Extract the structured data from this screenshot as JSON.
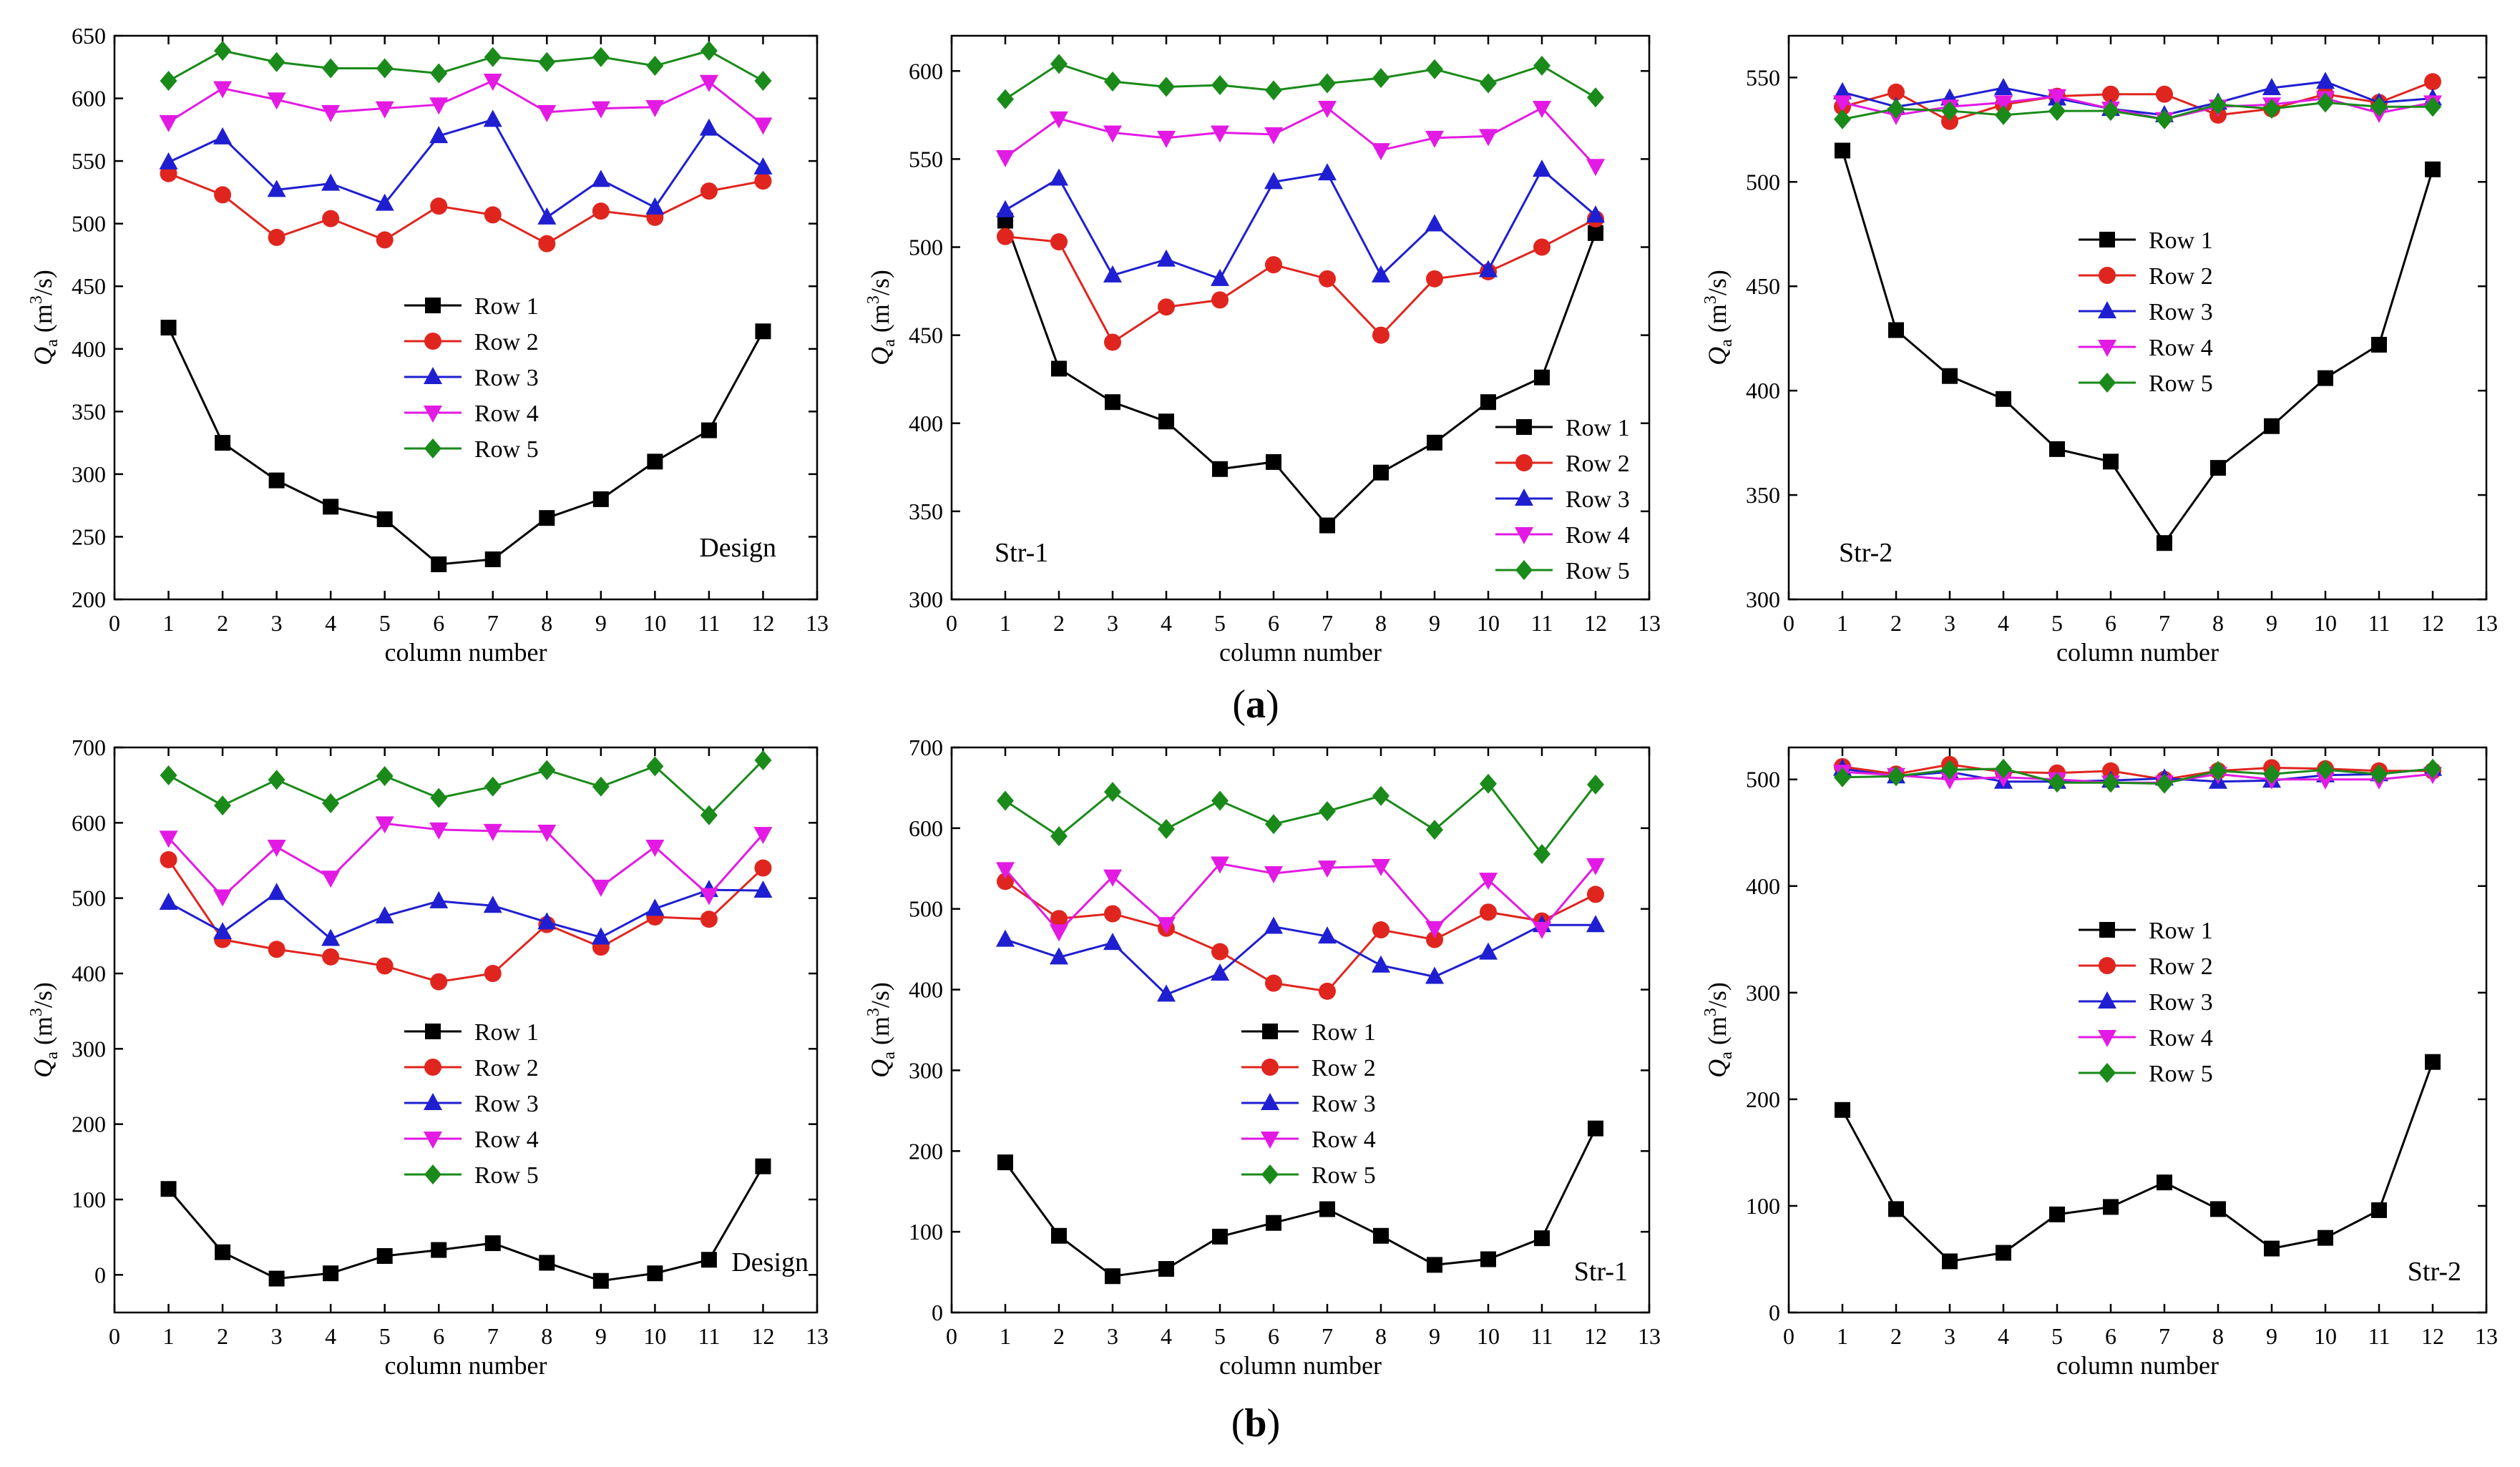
{
  "figure": {
    "label_a": "(a)",
    "label_b": "(b)",
    "letter_a": "a",
    "letter_b": "b"
  },
  "legend_names": [
    "Row 1",
    "Row 2",
    "Row 3",
    "Row 4",
    "Row 5"
  ],
  "series_colors": [
    "#000000",
    "#e0251f",
    "#1f1fd1",
    "#e31ae3",
    "#1a8a1a"
  ],
  "series_markers": [
    "square",
    "circle",
    "triangle-up",
    "triangle-down",
    "diamond"
  ],
  "chart_data": [
    {
      "type": "line",
      "panel": "a-1",
      "annotation": "Design",
      "xlabel": "column number",
      "ylabel": "Qa (m3/s)",
      "xlim": [
        0,
        13
      ],
      "ylim": [
        200,
        650
      ],
      "yticks": [
        200,
        250,
        300,
        350,
        400,
        450,
        500,
        550,
        600,
        650
      ],
      "x": [
        1,
        2,
        3,
        4,
        5,
        6,
        7,
        8,
        9,
        10,
        11,
        12
      ],
      "legend_position": "middle-center",
      "series": [
        {
          "name": "Row 1",
          "values": [
            417,
            325,
            295,
            274,
            264,
            228,
            232,
            265,
            280,
            310,
            335,
            414
          ]
        },
        {
          "name": "Row 2",
          "values": [
            540,
            523,
            489,
            504,
            487,
            514,
            507,
            484,
            510,
            505,
            526,
            534
          ]
        },
        {
          "name": "Row 3",
          "values": [
            549,
            569,
            527,
            532,
            516,
            570,
            583,
            505,
            535,
            513,
            576,
            545
          ]
        },
        {
          "name": "Row 4",
          "values": [
            581,
            608,
            599,
            589,
            592,
            595,
            614,
            589,
            592,
            593,
            613,
            579
          ]
        },
        {
          "name": "Row 5",
          "values": [
            614,
            638,
            629,
            624,
            624,
            620,
            633,
            629,
            633,
            626,
            638,
            614
          ]
        }
      ]
    },
    {
      "type": "line",
      "panel": "a-2",
      "annotation": "Str-1",
      "xlabel": "column number",
      "ylabel": "Qa (m3/s)",
      "xlim": [
        0,
        13
      ],
      "ylim": [
        300,
        620
      ],
      "yticks": [
        300,
        350,
        400,
        450,
        500,
        550,
        600
      ],
      "x": [
        1,
        2,
        3,
        4,
        5,
        6,
        7,
        8,
        9,
        10,
        11,
        12
      ],
      "legend_position": "bottom-right",
      "series": [
        {
          "name": "Row 1",
          "values": [
            515,
            431,
            412,
            401,
            374,
            378,
            342,
            372,
            389,
            412,
            426,
            508
          ]
        },
        {
          "name": "Row 2",
          "values": [
            506,
            503,
            446,
            466,
            470,
            490,
            482,
            450,
            482,
            486,
            500,
            516
          ]
        },
        {
          "name": "Row 3",
          "values": [
            521,
            539,
            484,
            493,
            482,
            537,
            542,
            484,
            513,
            487,
            544,
            518
          ]
        },
        {
          "name": "Row 4",
          "values": [
            551,
            573,
            565,
            562,
            565,
            564,
            579,
            555,
            562,
            563,
            579,
            546
          ]
        },
        {
          "name": "Row 5",
          "values": [
            584,
            604,
            594,
            591,
            592,
            589,
            593,
            596,
            601,
            593,
            603,
            585
          ]
        }
      ]
    },
    {
      "type": "line",
      "panel": "a-3",
      "annotation": "Str-2",
      "xlabel": "column number",
      "ylabel": "Qa (m3/s)",
      "xlim": [
        0,
        13
      ],
      "ylim": [
        300,
        570
      ],
      "yticks": [
        300,
        350,
        400,
        450,
        500,
        550
      ],
      "x": [
        1,
        2,
        3,
        4,
        5,
        6,
        7,
        8,
        9,
        10,
        11,
        12
      ],
      "legend_position": "middle-center",
      "series": [
        {
          "name": "Row 1",
          "values": [
            515,
            429,
            407,
            396,
            372,
            366,
            327,
            363,
            383,
            406,
            422,
            506
          ]
        },
        {
          "name": "Row 2",
          "values": [
            536,
            543,
            529,
            537,
            541,
            542,
            542,
            532,
            535,
            542,
            538,
            548
          ]
        },
        {
          "name": "Row 3",
          "values": [
            543,
            536,
            540,
            545,
            540,
            535,
            532,
            538,
            545,
            548,
            538,
            540
          ]
        },
        {
          "name": "Row 4",
          "values": [
            538,
            532,
            536,
            538,
            541,
            535,
            530,
            536,
            537,
            540,
            533,
            538
          ]
        },
        {
          "name": "Row 5",
          "values": [
            530,
            535,
            534,
            532,
            534,
            534,
            530,
            537,
            535,
            538,
            536,
            536
          ]
        }
      ]
    },
    {
      "type": "line",
      "panel": "b-1",
      "annotation": "Design",
      "xlabel": "column number",
      "ylabel": "Qa (m3/s)",
      "xlim": [
        0,
        13
      ],
      "ylim": [
        -50,
        700
      ],
      "yticks": [
        0,
        100,
        200,
        300,
        400,
        500,
        600,
        700
      ],
      "x": [
        1,
        2,
        3,
        4,
        5,
        6,
        7,
        8,
        9,
        10,
        11,
        12
      ],
      "legend_position": "middle-center",
      "series": [
        {
          "name": "Row 1",
          "values": [
            114,
            30,
            -5,
            2,
            25,
            33,
            42,
            16,
            -8,
            2,
            20,
            144
          ]
        },
        {
          "name": "Row 2",
          "values": [
            551,
            445,
            432,
            422,
            410,
            389,
            400,
            465,
            435,
            475,
            472,
            540
          ]
        },
        {
          "name": "Row 3",
          "values": [
            494,
            455,
            507,
            446,
            476,
            496,
            490,
            468,
            448,
            486,
            511,
            510
          ]
        },
        {
          "name": "Row 4",
          "values": [
            580,
            502,
            568,
            527,
            599,
            591,
            589,
            588,
            515,
            568,
            504,
            585
          ]
        },
        {
          "name": "Row 5",
          "values": [
            663,
            623,
            657,
            626,
            662,
            633,
            648,
            670,
            648,
            675,
            610,
            683
          ]
        }
      ]
    },
    {
      "type": "line",
      "panel": "b-2",
      "annotation": "Str-1",
      "xlabel": "column number",
      "ylabel": "Qa (m3/s)",
      "xlim": [
        0,
        13
      ],
      "ylim": [
        0,
        700
      ],
      "yticks": [
        0,
        100,
        200,
        300,
        400,
        500,
        600,
        700
      ],
      "x": [
        1,
        2,
        3,
        4,
        5,
        6,
        7,
        8,
        9,
        10,
        11,
        12
      ],
      "legend_position": "middle-center",
      "series": [
        {
          "name": "Row 1",
          "values": [
            186,
            95,
            45,
            54,
            94,
            111,
            128,
            95,
            59,
            66,
            92,
            228
          ]
        },
        {
          "name": "Row 2",
          "values": [
            534,
            488,
            494,
            476,
            447,
            408,
            398,
            474,
            462,
            496,
            485,
            518
          ]
        },
        {
          "name": "Row 3",
          "values": [
            462,
            440,
            458,
            394,
            420,
            478,
            466,
            430,
            416,
            446,
            480,
            480
          ]
        },
        {
          "name": "Row 4",
          "values": [
            549,
            472,
            540,
            481,
            556,
            544,
            551,
            553,
            476,
            536,
            475,
            554
          ]
        },
        {
          "name": "Row 5",
          "values": [
            634,
            590,
            645,
            599,
            634,
            605,
            621,
            640,
            598,
            655,
            568,
            654
          ]
        }
      ]
    },
    {
      "type": "line",
      "panel": "b-3",
      "annotation": "Str-2",
      "xlabel": "column number",
      "ylabel": "Qa (m3/s)",
      "xlim": [
        0,
        13
      ],
      "ylim": [
        0,
        530
      ],
      "yticks": [
        0,
        100,
        200,
        300,
        400,
        500
      ],
      "x": [
        1,
        2,
        3,
        4,
        5,
        6,
        7,
        8,
        9,
        10,
        11,
        12
      ],
      "legend_position": "middle-center",
      "series": [
        {
          "name": "Row 1",
          "values": [
            190,
            97,
            48,
            56,
            92,
            99,
            122,
            97,
            60,
            70,
            96,
            235
          ]
        },
        {
          "name": "Row 2",
          "values": [
            512,
            505,
            514,
            507,
            506,
            508,
            500,
            508,
            511,
            510,
            508,
            508
          ]
        },
        {
          "name": "Row 3",
          "values": [
            510,
            503,
            507,
            498,
            498,
            499,
            501,
            498,
            499,
            504,
            505,
            510
          ]
        },
        {
          "name": "Row 4",
          "values": [
            507,
            504,
            500,
            502,
            500,
            497,
            497,
            505,
            500,
            500,
            500,
            505
          ]
        },
        {
          "name": "Row 5",
          "values": [
            502,
            503,
            509,
            510,
            497,
            497,
            496,
            508,
            505,
            509,
            505,
            510
          ]
        }
      ]
    }
  ]
}
